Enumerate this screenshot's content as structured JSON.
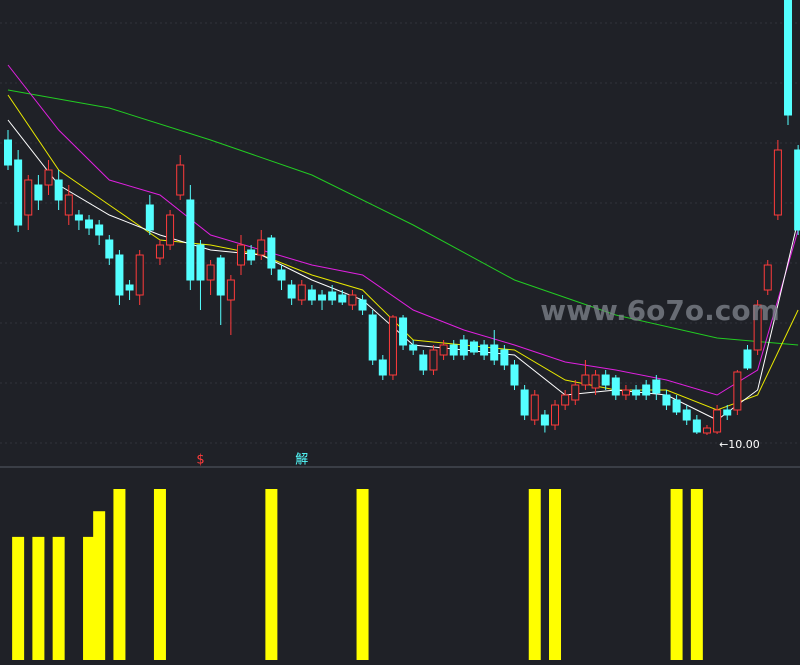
{
  "chart_data": [
    {
      "type": "candlestick",
      "ylim": [
        9.4,
        18.7
      ],
      "up_color": "#ff3b3b",
      "down_color": "#54ffff",
      "open": [
        15.9,
        15.5,
        14.4,
        15.0,
        15.0,
        15.1,
        14.4,
        14.4,
        14.3,
        14.2,
        13.9,
        13.6,
        13.0,
        12.8,
        14.6,
        13.54,
        13.8,
        14.8,
        14.7,
        13.8,
        13.1,
        13.54,
        12.7,
        13.4,
        13.7,
        13.6,
        13.94,
        13.3,
        13.0,
        12.7,
        12.9,
        12.8,
        12.86,
        12.8,
        12.6,
        12.7,
        12.4,
        11.5,
        11.2,
        12.34,
        11.8,
        11.6,
        11.3,
        11.6,
        11.8,
        11.9,
        11.86,
        11.8,
        11.8,
        11.7,
        11.4,
        10.9,
        10.3,
        10.4,
        10.2,
        10.6,
        10.7,
        11.0,
        10.94,
        11.2,
        11.14,
        10.8,
        10.9,
        11.0,
        11.1,
        10.8,
        10.7,
        10.5,
        10.3,
        10.04,
        10.06,
        10.5,
        10.5,
        11.7,
        11.7,
        12.9,
        14.4,
        18.7,
        15.7
      ],
      "close": [
        15.4,
        14.2,
        15.1,
        14.7,
        15.3,
        14.7,
        14.8,
        14.3,
        14.14,
        14.0,
        13.54,
        12.8,
        12.9,
        13.6,
        14.1,
        13.8,
        14.4,
        15.4,
        13.1,
        13.1,
        13.4,
        12.8,
        13.1,
        13.8,
        13.5,
        13.9,
        13.34,
        13.1,
        12.74,
        13.0,
        12.7,
        12.7,
        12.7,
        12.66,
        12.8,
        12.5,
        11.5,
        11.2,
        12.36,
        11.8,
        11.7,
        11.3,
        11.7,
        11.8,
        11.6,
        11.6,
        11.66,
        11.6,
        11.5,
        11.4,
        11.0,
        10.4,
        10.8,
        10.2,
        10.6,
        10.8,
        11.0,
        11.2,
        11.2,
        11.0,
        10.8,
        10.9,
        10.8,
        10.8,
        10.84,
        10.6,
        10.46,
        10.3,
        10.06,
        10.14,
        10.5,
        10.4,
        11.26,
        11.34,
        12.6,
        13.4,
        15.7,
        16.4,
        14.1
      ],
      "high": [
        16.1,
        15.7,
        15.2,
        15.2,
        15.5,
        15.3,
        15.0,
        14.5,
        14.4,
        14.3,
        14.0,
        13.7,
        13.1,
        13.7,
        14.8,
        13.9,
        14.5,
        15.6,
        15.0,
        13.9,
        13.5,
        13.6,
        13.2,
        14.0,
        13.8,
        14.1,
        14.0,
        13.4,
        13.1,
        13.1,
        13.0,
        12.9,
        13.0,
        12.9,
        12.9,
        12.8,
        12.5,
        11.6,
        12.4,
        12.4,
        11.9,
        11.7,
        11.8,
        11.9,
        11.9,
        12.0,
        11.9,
        11.9,
        12.1,
        11.8,
        11.5,
        11.0,
        10.9,
        10.5,
        10.7,
        10.9,
        11.1,
        11.5,
        11.3,
        11.3,
        11.2,
        11.0,
        11.0,
        11.1,
        11.2,
        10.9,
        10.8,
        10.6,
        10.4,
        10.2,
        10.6,
        10.6,
        11.3,
        11.8,
        12.7,
        13.5,
        15.9,
        18.7,
        15.8
      ],
      "low": [
        15.3,
        14.06,
        14.1,
        14.5,
        14.8,
        14.5,
        14.2,
        14.1,
        14.0,
        13.8,
        13.4,
        12.6,
        12.7,
        12.6,
        14.0,
        13.4,
        13.7,
        14.7,
        12.9,
        12.5,
        12.8,
        12.2,
        12.0,
        13.2,
        13.4,
        13.5,
        13.2,
        12.9,
        12.6,
        12.6,
        12.6,
        12.5,
        12.6,
        12.6,
        12.5,
        12.4,
        11.4,
        11.1,
        11.1,
        11.7,
        11.6,
        11.2,
        11.2,
        11.5,
        11.5,
        11.5,
        11.6,
        11.5,
        11.4,
        11.3,
        10.9,
        10.3,
        10.2,
        10.05,
        10.1,
        10.5,
        10.6,
        10.9,
        10.8,
        10.9,
        10.7,
        10.7,
        10.7,
        10.7,
        10.7,
        10.5,
        10.4,
        10.2,
        10.02,
        10.0,
        10.02,
        10.3,
        10.4,
        11.3,
        11.6,
        12.8,
        14.3,
        16.2,
        14.0
      ],
      "lines": [
        {
          "color": "#22cc22",
          "x": [
            0,
            10,
            20,
            30,
            40,
            50,
            60,
            70,
            78
          ],
          "values": [
            16.9,
            16.54,
            15.9,
            15.2,
            14.2,
            13.1,
            12.4,
            11.94,
            11.8
          ]
        },
        {
          "color": "#e020e0",
          "x": [
            0,
            5,
            10,
            15,
            20,
            25,
            30,
            35,
            40,
            45,
            50,
            55,
            60,
            65,
            70,
            74,
            78
          ],
          "values": [
            17.4,
            16.1,
            15.1,
            14.8,
            14.0,
            13.7,
            13.4,
            13.2,
            12.5,
            12.1,
            11.8,
            11.46,
            11.3,
            11.1,
            10.8,
            11.3,
            14.1
          ]
        },
        {
          "color": "#e8e800",
          "x": [
            0,
            5,
            10,
            15,
            20,
            25,
            30,
            35,
            40,
            45,
            50,
            55,
            60,
            65,
            70,
            74,
            78
          ],
          "values": [
            16.8,
            15.3,
            14.6,
            13.9,
            13.8,
            13.6,
            13.2,
            12.9,
            11.9,
            11.8,
            11.7,
            11.1,
            10.9,
            10.9,
            10.5,
            10.8,
            12.5
          ]
        },
        {
          "color": "#ffffff",
          "x": [
            0,
            5,
            10,
            15,
            20,
            25,
            30,
            35,
            40,
            45,
            50,
            55,
            60,
            65,
            70,
            74,
            78
          ],
          "values": [
            16.3,
            15.0,
            14.4,
            14.0,
            13.7,
            13.6,
            13.1,
            12.7,
            11.8,
            11.7,
            11.6,
            10.8,
            10.9,
            10.8,
            10.3,
            10.9,
            14.3
          ]
        }
      ],
      "annotations": [
        {
          "label": "←10.00",
          "value": 10.0,
          "x": 70
        }
      ],
      "markers": [
        {
          "label": "$",
          "x": 19,
          "color": "#ff3b3b"
        },
        {
          "label": "解",
          "x": 29,
          "color": "#54ffff"
        }
      ],
      "watermark": "www.6o7o.com"
    },
    {
      "type": "bar",
      "color": "#ffff00",
      "ylim": [
        0,
        100
      ],
      "x": [
        1,
        3,
        5,
        8,
        9,
        11,
        15,
        26,
        35,
        52,
        54,
        66,
        68
      ],
      "values": [
        72,
        72,
        72,
        72,
        87,
        100,
        100,
        100,
        100,
        100,
        100,
        100,
        100
      ]
    }
  ]
}
